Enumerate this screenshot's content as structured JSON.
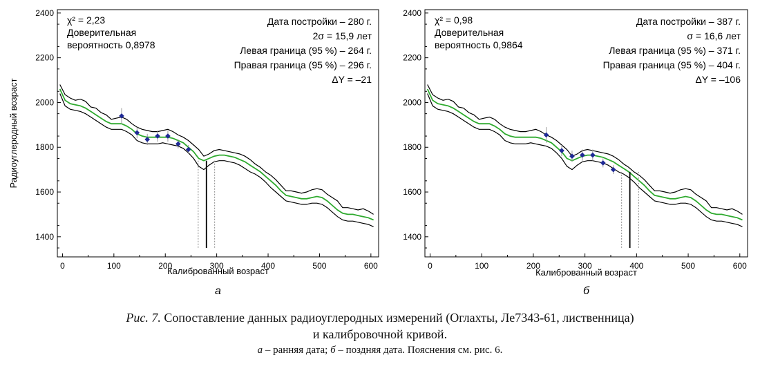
{
  "chart_data": [
    {
      "type": "line",
      "panel_label": "а",
      "xlabel": "Калиброванный возраст",
      "ylabel": "Радиоуглеродный возраст",
      "xlim": [
        -10,
        615
      ],
      "ylim": [
        1310,
        2415
      ],
      "xticks": [
        0,
        100,
        200,
        300,
        400,
        500,
        600
      ],
      "yticks": [
        1400,
        1600,
        1800,
        2000,
        2200,
        2400
      ],
      "grid": false,
      "stats_left": [
        "χ² = 2,23",
        "Доверительная",
        "вероятность 0,8978"
      ],
      "stats_right": [
        "Дата постройки – 280 г.",
        "2σ = 15,9 лет",
        "Левая граница (95 %) – 264 г.",
        "Правая граница (95 %) – 296 г.",
        "ΔY = –21"
      ],
      "calibration_curve": {
        "x": [
          -5,
          5,
          15,
          25,
          35,
          45,
          55,
          65,
          75,
          85,
          95,
          105,
          115,
          125,
          135,
          145,
          155,
          165,
          175,
          185,
          195,
          205,
          215,
          225,
          235,
          245,
          255,
          265,
          275,
          285,
          295,
          305,
          315,
          325,
          335,
          345,
          355,
          365,
          375,
          385,
          395,
          405,
          415,
          425,
          435,
          445,
          455,
          465,
          475,
          485,
          495,
          505,
          515,
          525,
          535,
          545,
          555,
          565,
          575,
          585,
          595,
          605
        ],
        "center": [
          2060,
          2010,
          1995,
          1990,
          1985,
          1975,
          1960,
          1945,
          1930,
          1915,
          1905,
          1905,
          1905,
          1895,
          1880,
          1860,
          1850,
          1845,
          1845,
          1845,
          1845,
          1845,
          1840,
          1830,
          1820,
          1800,
          1780,
          1750,
          1740,
          1750,
          1760,
          1765,
          1765,
          1760,
          1755,
          1745,
          1735,
          1720,
          1705,
          1690,
          1670,
          1650,
          1630,
          1605,
          1585,
          1580,
          1575,
          1570,
          1570,
          1575,
          1580,
          1575,
          1560,
          1540,
          1520,
          1505,
          1500,
          1500,
          1495,
          1490,
          1485,
          1475
        ],
        "upper": [
          2080,
          2035,
          2020,
          2010,
          2015,
          2005,
          1980,
          1975,
          1955,
          1945,
          1925,
          1930,
          1935,
          1925,
          1905,
          1890,
          1880,
          1875,
          1870,
          1870,
          1875,
          1880,
          1870,
          1855,
          1845,
          1830,
          1810,
          1790,
          1760,
          1770,
          1785,
          1790,
          1785,
          1780,
          1775,
          1770,
          1760,
          1745,
          1725,
          1710,
          1690,
          1675,
          1655,
          1630,
          1605,
          1605,
          1600,
          1595,
          1600,
          1610,
          1615,
          1610,
          1590,
          1575,
          1560,
          1530,
          1530,
          1525,
          1520,
          1525,
          1515,
          1500
        ],
        "lower": [
          2040,
          1985,
          1970,
          1965,
          1960,
          1950,
          1935,
          1920,
          1905,
          1890,
          1880,
          1880,
          1880,
          1870,
          1855,
          1830,
          1820,
          1815,
          1815,
          1815,
          1820,
          1815,
          1810,
          1805,
          1795,
          1775,
          1750,
          1715,
          1700,
          1720,
          1735,
          1740,
          1740,
          1735,
          1730,
          1720,
          1705,
          1690,
          1680,
          1665,
          1645,
          1620,
          1600,
          1580,
          1560,
          1555,
          1550,
          1545,
          1545,
          1550,
          1550,
          1545,
          1530,
          1510,
          1490,
          1475,
          1470,
          1470,
          1465,
          1460,
          1455,
          1445
        ]
      },
      "measurements": {
        "x": [
          115,
          145,
          165,
          185,
          205,
          225,
          245
        ],
        "y": [
          1940,
          1865,
          1835,
          1850,
          1850,
          1815,
          1790
        ],
        "err": [
          35,
          25,
          25,
          25,
          25,
          20,
          20
        ]
      },
      "marker_lines": {
        "left": 264,
        "center": 280,
        "right": 296,
        "bottom": 1350
      }
    },
    {
      "type": "line",
      "panel_label": "б",
      "xlabel": "Калиброванный возраст",
      "ylabel": "",
      "xlim": [
        -10,
        615
      ],
      "ylim": [
        1310,
        2415
      ],
      "xticks": [
        0,
        100,
        200,
        300,
        400,
        500,
        600
      ],
      "yticks": [
        1400,
        1600,
        1800,
        2000,
        2200,
        2400
      ],
      "grid": false,
      "stats_left": [
        "χ² = 0,98",
        "Доверительная",
        "вероятность 0,9864"
      ],
      "stats_right": [
        "Дата постройки – 387 г.",
        "σ = 16,6 лет",
        "Левая граница (95 %) – 371 г.",
        "Правая граница (95 %) – 404 г.",
        "ΔY = –106"
      ],
      "calibration_curve": {
        "x": [
          -5,
          5,
          15,
          25,
          35,
          45,
          55,
          65,
          75,
          85,
          95,
          105,
          115,
          125,
          135,
          145,
          155,
          165,
          175,
          185,
          195,
          205,
          215,
          225,
          235,
          245,
          255,
          265,
          275,
          285,
          295,
          305,
          315,
          325,
          335,
          345,
          355,
          365,
          375,
          385,
          395,
          405,
          415,
          425,
          435,
          445,
          455,
          465,
          475,
          485,
          495,
          505,
          515,
          525,
          535,
          545,
          555,
          565,
          575,
          585,
          595,
          605
        ],
        "center": [
          2060,
          2010,
          1995,
          1990,
          1985,
          1975,
          1960,
          1945,
          1930,
          1915,
          1905,
          1905,
          1905,
          1895,
          1880,
          1860,
          1850,
          1845,
          1845,
          1845,
          1845,
          1845,
          1840,
          1830,
          1820,
          1800,
          1780,
          1750,
          1740,
          1750,
          1760,
          1765,
          1765,
          1760,
          1755,
          1745,
          1735,
          1720,
          1705,
          1690,
          1670,
          1650,
          1630,
          1605,
          1585,
          1580,
          1575,
          1570,
          1570,
          1575,
          1580,
          1575,
          1560,
          1540,
          1520,
          1505,
          1500,
          1500,
          1495,
          1490,
          1485,
          1475
        ],
        "upper": [
          2080,
          2035,
          2020,
          2010,
          2015,
          2005,
          1980,
          1975,
          1955,
          1945,
          1925,
          1930,
          1935,
          1925,
          1905,
          1890,
          1880,
          1875,
          1870,
          1870,
          1875,
          1880,
          1870,
          1855,
          1845,
          1830,
          1810,
          1790,
          1760,
          1770,
          1785,
          1790,
          1785,
          1780,
          1775,
          1770,
          1760,
          1745,
          1725,
          1710,
          1690,
          1675,
          1655,
          1630,
          1605,
          1605,
          1600,
          1595,
          1600,
          1610,
          1615,
          1610,
          1590,
          1575,
          1560,
          1530,
          1530,
          1525,
          1520,
          1525,
          1515,
          1500
        ],
        "lower": [
          2040,
          1985,
          1970,
          1965,
          1960,
          1950,
          1935,
          1920,
          1905,
          1890,
          1880,
          1880,
          1880,
          1870,
          1855,
          1830,
          1820,
          1815,
          1815,
          1815,
          1820,
          1815,
          1810,
          1805,
          1795,
          1775,
          1750,
          1715,
          1700,
          1720,
          1735,
          1740,
          1740,
          1735,
          1730,
          1720,
          1705,
          1690,
          1680,
          1665,
          1645,
          1620,
          1600,
          1580,
          1560,
          1555,
          1550,
          1545,
          1545,
          1550,
          1550,
          1545,
          1530,
          1510,
          1490,
          1475,
          1470,
          1470,
          1465,
          1460,
          1455,
          1445
        ]
      },
      "measurements": {
        "x": [
          225,
          255,
          275,
          295,
          315,
          335,
          355
        ],
        "y": [
          1855,
          1785,
          1760,
          1765,
          1765,
          1730,
          1700
        ],
        "err": [
          35,
          25,
          25,
          25,
          25,
          20,
          20
        ]
      },
      "marker_lines": {
        "left": 371,
        "center": 387,
        "right": 404,
        "bottom": 1350
      }
    }
  ],
  "colors": {
    "curve_bounds": "#000000",
    "curve_center": "#2eaa2e",
    "points": "#1f2a96",
    "error_bars": "#9a9a9a",
    "axis": "#000000"
  },
  "caption": {
    "fig_label": "Рис. 7.",
    "line1_text": " Сопоставление данных радиоуглеродных измерений (Оглахты, Ле7343-61, лиственница)",
    "line2_text": "и калибровочной кривой.",
    "line3_a": "а",
    "line3_a_text": " – ранняя дата; ",
    "line3_b": "б",
    "line3_b_text": " – поздняя дата. Пояснения см. рис. 6."
  }
}
